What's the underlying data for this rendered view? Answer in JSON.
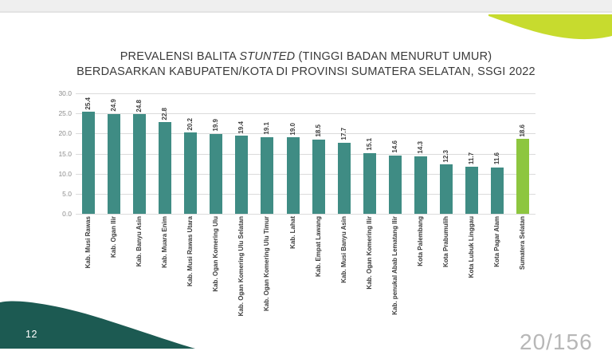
{
  "slide": {
    "page_number": "12",
    "page_counter": "20/156"
  },
  "title": {
    "line1_pre": "PREVALENSI BALITA ",
    "line1_italic": "STUNTED",
    "line1_post": " (TINGGI BADAN MENURUT UMUR)",
    "line2": "BERDASARKAN KABUPATEN/KOTA DI PROVINSI SUMATERA SELATAN, SSGI 2022"
  },
  "chart_data": {
    "type": "bar",
    "title": "Prevalensi balita stunted (tinggi badan menurut umur) berdasarkan kabupaten/kota di Provinsi Sumatera Selatan, SSGI 2022",
    "categories": [
      "Kab. Musi Rawas",
      "Kab. Ogan Ilir",
      "Kab. Banyu Asin",
      "Kab. Muara Enim",
      "Kab. Musi Rawas Utara",
      "Kab. Ogan Komering Ulu",
      "Kab. Ogan Komering Ulu Selatan",
      "Kab. Ogan Komering Ulu Timur",
      "Kab. Lahat",
      "Kab. Empat Lawang",
      "Kab. Musi Banyu Asin",
      "Kab. Ogan Komering Ilir",
      "Kab. penukal Abab Lematang Ilir",
      "Kota Palembang",
      "Kota Prabumulih",
      "Kota Lubuk Linggau",
      "Kota Pagar Alam",
      "Sumatera Selatan"
    ],
    "values": [
      25.4,
      24.9,
      24.8,
      22.8,
      20.2,
      19.9,
      19.4,
      19.1,
      19.0,
      18.5,
      17.7,
      15.1,
      14.6,
      14.3,
      12.3,
      11.7,
      11.6,
      18.6
    ],
    "highlight_index": 17,
    "ylim": [
      0,
      30
    ],
    "yticks": [
      "30.0",
      "25.0",
      "20.0",
      "15.0",
      "10.0",
      "5.0",
      "0.0"
    ],
    "grid": true,
    "value_labels": true,
    "legend": "none",
    "xlabel": "",
    "ylabel": ""
  },
  "colors": {
    "bar": "#3F8C84",
    "highlight_bar": "#8DC63F",
    "deco_lime": "#C7DB2E",
    "deco_teal": "#1C5A52"
  }
}
